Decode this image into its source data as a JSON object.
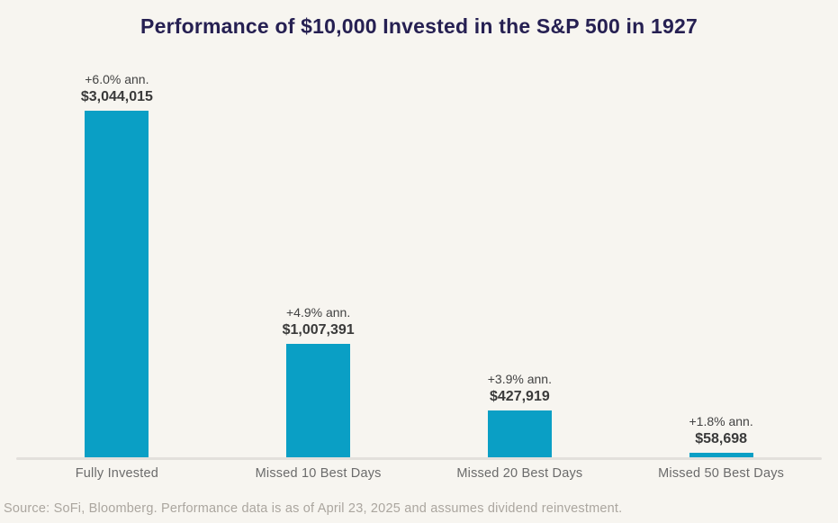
{
  "chart": {
    "title": "Performance of $10,000 Invested in the S&P 500 in 1927",
    "source": "Source: SoFi, Bloomberg. Performance data is as of April 23, 2025 and assumes dividend reinvestment."
  },
  "chart_data": {
    "type": "bar",
    "title": "Performance of $10,000 Invested in the S&P 500 in 1927",
    "categories": [
      "Fully Invested",
      "Missed 10 Best Days",
      "Missed 20 Best Days",
      "Missed 50 Best Days"
    ],
    "values": [
      3044015,
      1007391,
      427919,
      58698
    ],
    "value_labels": [
      "$3,044,015",
      "$1,007,391",
      "$427,919",
      "$58,698"
    ],
    "annual_return_labels": [
      "+6.0% ann.",
      "+4.9% ann.",
      "+3.9% ann.",
      "+1.8% ann."
    ],
    "xlabel": "",
    "ylabel": "",
    "ylim": [
      0,
      3044015
    ],
    "grid": false,
    "legend": false,
    "bar_color": "#0a9fc5",
    "background_color": "#f7f5f0",
    "title_color": "#262052"
  }
}
